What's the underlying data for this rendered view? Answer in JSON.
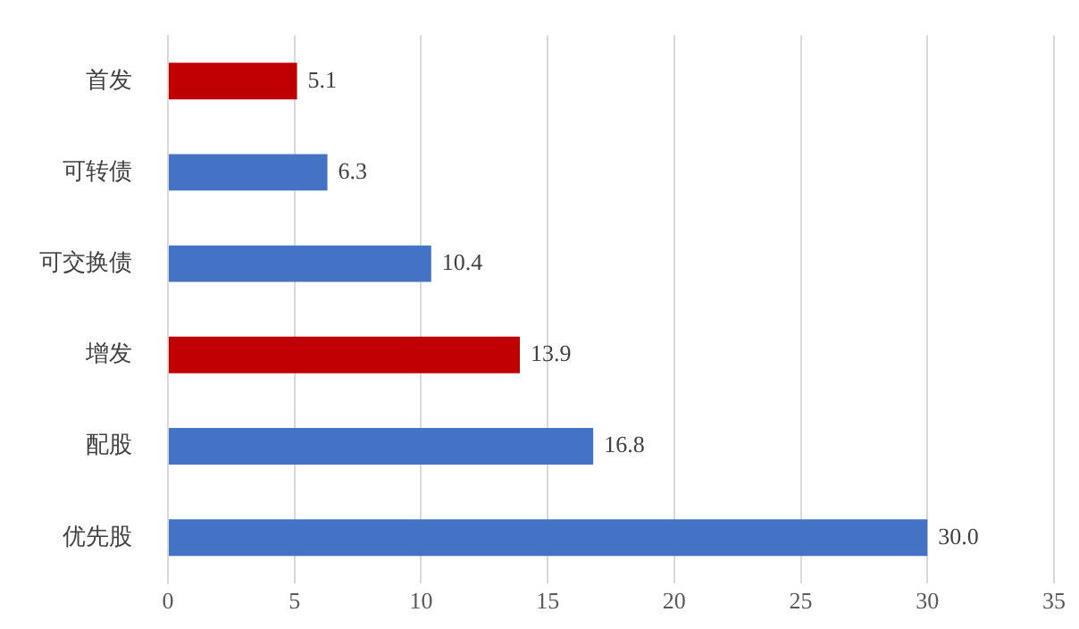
{
  "chart_data": {
    "type": "bar",
    "orientation": "horizontal",
    "categories": [
      "首发",
      "可转债",
      "可交换债",
      "增发",
      "配股",
      "优先股"
    ],
    "values": [
      5.1,
      6.3,
      10.4,
      13.9,
      16.8,
      30.0
    ],
    "colors": [
      "#c00000",
      "#4472c4",
      "#4472c4",
      "#c00000",
      "#4472c4",
      "#4472c4"
    ],
    "value_labels": [
      "5.1",
      "6.3",
      "10.4",
      "13.9",
      "16.8",
      "30.0"
    ],
    "xlim": [
      0,
      35
    ],
    "xticks": [
      0,
      5,
      10,
      15,
      20,
      25,
      30,
      35
    ],
    "grid": "x",
    "legend": false
  }
}
